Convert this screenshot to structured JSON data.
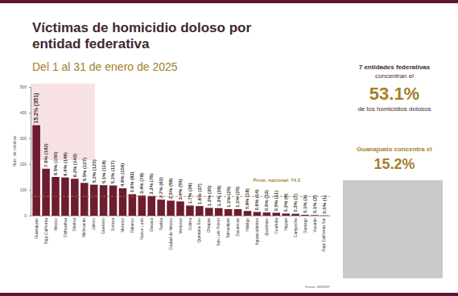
{
  "chart_data": {
    "type": "bar",
    "title": [
      "Víctimas de homicidio doloso por",
      "entidad federativa"
    ],
    "subtitle": "Del 1 al 31 de enero de 2025",
    "y_label": "Núm. de víctimas",
    "categories": [
      "Guanajuato",
      "Baja California",
      "México",
      "Chihuahua",
      "Sinaloa",
      "Michoacán",
      "Jalisco",
      "Guerrero",
      "Sonora",
      "Morelos",
      "Tabasco",
      "Nuevo León",
      "Oaxaca",
      "Puebla",
      "Ciudad de México",
      "Veracruz",
      "Colima",
      "Quintana Roo",
      "Chiapas",
      "San Luis Potosí",
      "Tamaulipas",
      "Zacatecas",
      "Hidalgo",
      "Aguascalientes",
      "Querétaro",
      "Coahuila",
      "Nayarit",
      "Campeche",
      "Durango",
      "Yucatán",
      "Baja California Sur"
    ],
    "values": [
      351,
      182,
      150,
      148,
      143,
      127,
      120,
      118,
      117,
      106,
      83,
      78,
      76,
      62,
      58,
      55,
      39,
      37,
      30,
      29,
      25,
      25,
      18,
      14,
      12,
      11,
      8,
      7,
      3,
      2,
      1
    ],
    "value_labels": [
      "15.2% (351)",
      "7.9% (182)",
      "6.5% (150)",
      "6.4% (148)",
      "6.2% (143)",
      "5.5% (127)",
      "5.2% (120)",
      "5.1% (118)",
      "5.1% (117)",
      "4.6% (106)",
      "3.6% (83)",
      "3.4% (78)",
      "3.3% (76)",
      "2.7% (62)",
      "2.5% (58)",
      "2.4% (55)",
      "1.7% (39)",
      "1.6% (37)",
      "1.3% (30)",
      "1.3% (29)",
      "1.1% (25)",
      "1.1% (25)",
      "0.8% (18)",
      "0.6% (14)",
      "0.5% (12)",
      "0.5% (11)",
      "0.3% (8)",
      "0.3% (7)",
      "0.1% (3)",
      "0.1% (2)",
      "0.0% (1)"
    ],
    "color": "#6e1d30",
    "ylim": [
      0,
      500
    ],
    "yticks": [
      0,
      100,
      200,
      300,
      400,
      500
    ],
    "grid": false,
    "data_labels": true,
    "average": {
      "label": "Prom. nacional: 74.2",
      "value": 74.2
    },
    "side_panel": [
      "7 entidades federativas",
      "concentran el",
      "53.1%",
      "de los homicidios dolosos",
      "Guanajuato concentra el",
      "15.2%"
    ],
    "source": "Fuente: SESNSP"
  }
}
